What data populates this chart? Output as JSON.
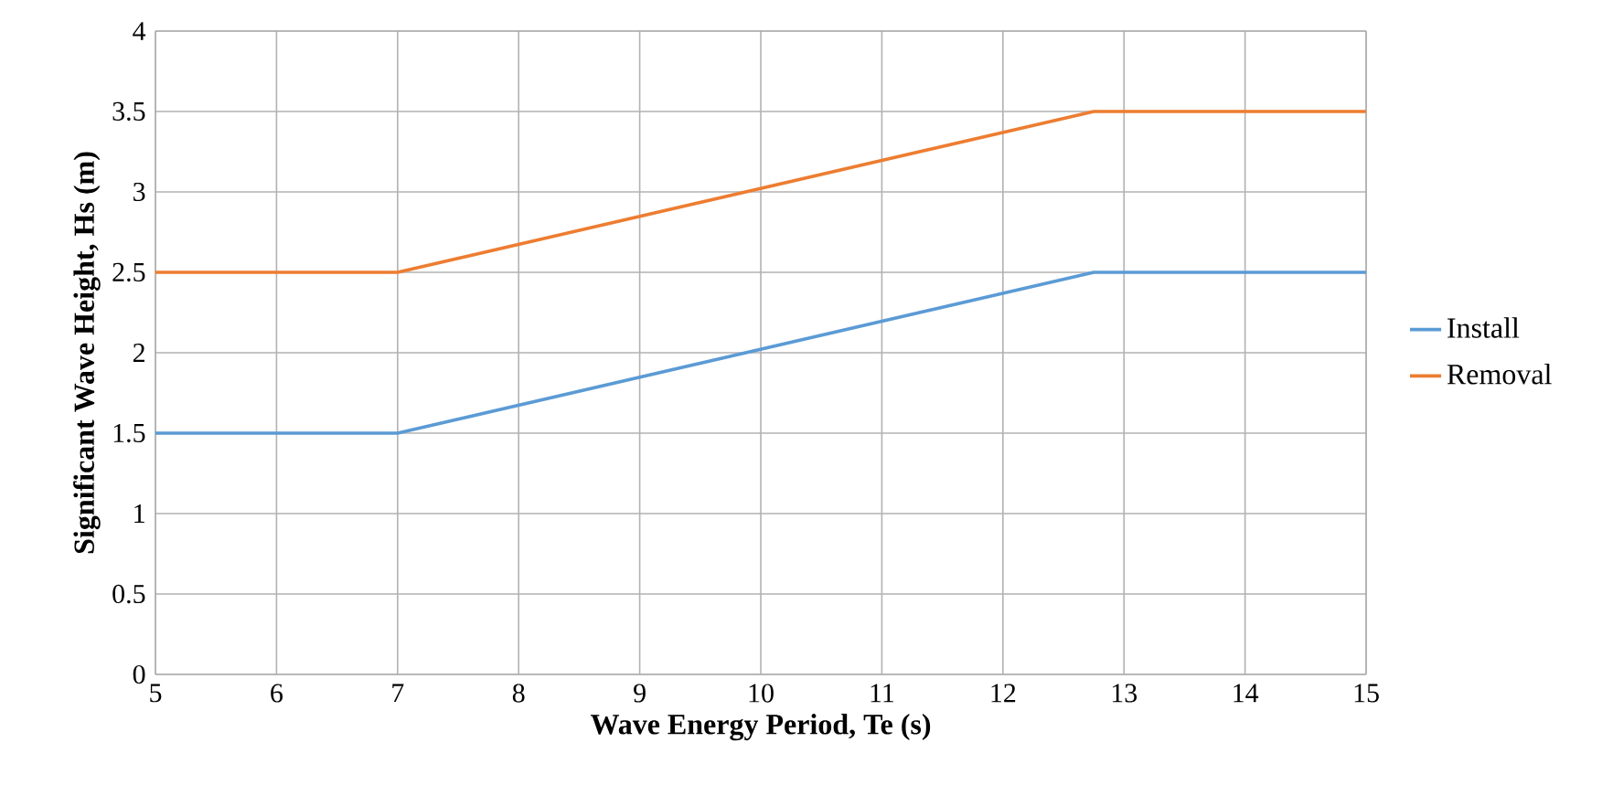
{
  "chart_data": {
    "type": "line",
    "xlabel": "Wave Energy Period, Te (s)",
    "ylabel": "Significant Wave Height, Hs (m)",
    "x": [
      5,
      7,
      12.75,
      15
    ],
    "series": [
      {
        "name": "Install",
        "color": "#5b9bd5",
        "values": [
          1.5,
          1.5,
          2.5,
          2.5
        ]
      },
      {
        "name": "Removal",
        "color": "#ed7d31",
        "values": [
          2.5,
          2.5,
          3.5,
          3.5
        ]
      }
    ],
    "xlim": [
      5,
      15
    ],
    "xticks": [
      5,
      6,
      7,
      8,
      9,
      10,
      11,
      12,
      13,
      14,
      15
    ],
    "ylim": [
      0,
      4
    ],
    "yticks": [
      0,
      0.5,
      1,
      1.5,
      2,
      2.5,
      3,
      3.5,
      4
    ],
    "grid": true,
    "legend": "right",
    "marker": "none",
    "line_style": "solid"
  }
}
